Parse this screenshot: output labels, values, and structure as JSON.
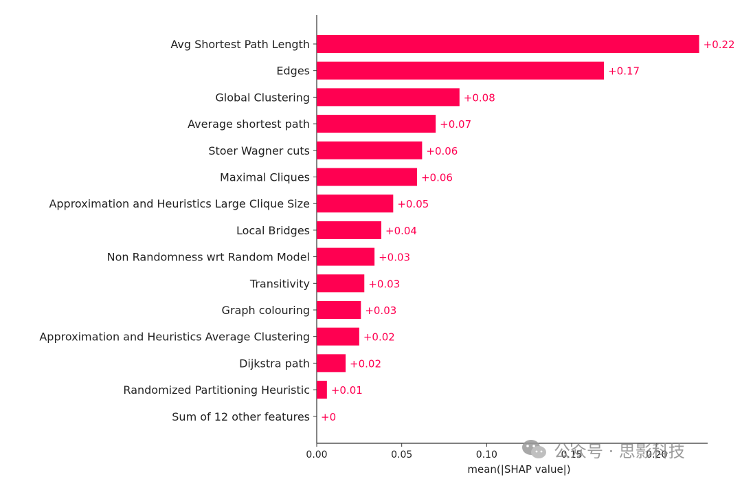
{
  "chart_data": {
    "type": "bar",
    "orientation": "horizontal",
    "categories": [
      "Avg Shortest Path Length",
      "Edges",
      "Global Clustering",
      "Average shortest path",
      "Stoer Wagner cuts",
      "Maximal Cliques",
      "Approximation and Heuristics Large Clique Size",
      "Local Bridges",
      "Non Randomness wrt Random Model",
      "Transitivity",
      "Graph colouring",
      "Approximation and Heuristics Average Clustering",
      "Dijkstra path",
      "Randomized Partitioning Heuristic",
      "Sum of 12 other features"
    ],
    "values": [
      0.225,
      0.169,
      0.084,
      0.07,
      0.062,
      0.059,
      0.045,
      0.038,
      0.034,
      0.028,
      0.026,
      0.025,
      0.017,
      0.006,
      0.0
    ],
    "value_labels": [
      "+0.22",
      "+0.17",
      "+0.08",
      "+0.07",
      "+0.06",
      "+0.06",
      "+0.05",
      "+0.04",
      "+0.03",
      "+0.03",
      "+0.03",
      "+0.02",
      "+0.02",
      "+0.01",
      "+0"
    ],
    "xticks": [
      "0.00",
      "0.05",
      "0.10",
      "0.15",
      "0.20"
    ],
    "xtick_values": [
      0,
      0.05,
      0.1,
      0.15,
      0.2
    ],
    "xlabel": "mean(|SHAP value|)",
    "ylabel": "",
    "title": "",
    "xlim": [
      0,
      0.23
    ],
    "grid": false,
    "colors": {
      "bar": "#ff0051",
      "label": "#ff0051",
      "axis": "#333333",
      "text": "#222222"
    }
  },
  "watermark": {
    "text": "公众号 · 思影科技",
    "icon": "wechat-icon"
  }
}
